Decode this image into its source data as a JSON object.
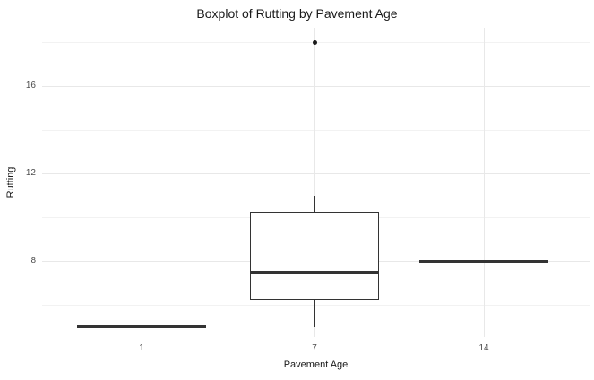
{
  "chart_data": {
    "type": "boxplot",
    "title": "Boxplot of Rutting by Pavement Age",
    "xlabel": "Pavement Age",
    "ylabel": "Rutting",
    "categories": [
      "1",
      "7",
      "14"
    ],
    "y_ticks": [
      8,
      12,
      16
    ],
    "y_minor_gridlines": [
      6,
      10,
      14,
      18
    ],
    "ylim": [
      4.5,
      18.7
    ],
    "grid": "horizontal major+minor and vertical major gridlines, light gray on white (theme_minimal)",
    "legend": "none",
    "series": [
      {
        "category": "1",
        "min": 5,
        "q1": 5,
        "median": 5,
        "q3": 5,
        "max": 5,
        "outliers": []
      },
      {
        "category": "7",
        "min": 5,
        "q1": 6.25,
        "median": 7.5,
        "q3": 10.25,
        "max": 11,
        "outliers": [
          18
        ]
      },
      {
        "category": "14",
        "min": 8,
        "q1": 8,
        "median": 8,
        "q3": 8,
        "max": 8,
        "outliers": []
      }
    ],
    "colors": {
      "background": "#ffffff",
      "grid_major": "#e8e8e8",
      "grid_minor": "#f2f2f2",
      "box_stroke": "#333333",
      "outlier": "#1a1a1a",
      "tick_label": "#4d4d4d",
      "title_text": "#1a1a1a"
    }
  }
}
